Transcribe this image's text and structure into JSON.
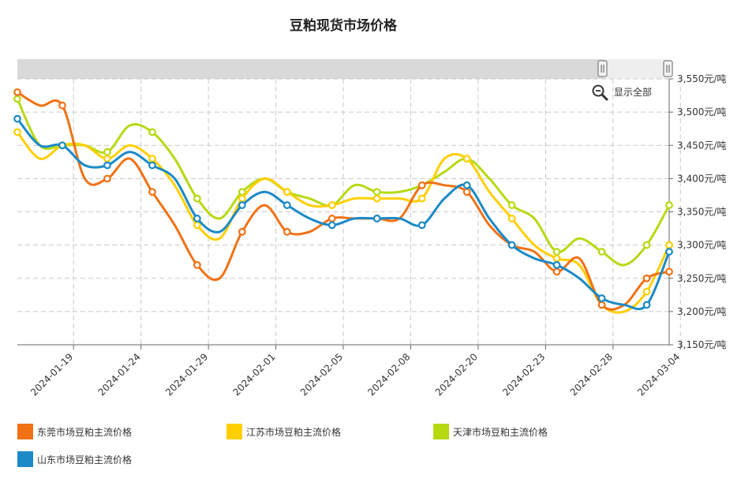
{
  "chart_data": {
    "type": "line",
    "title": "豆粕现货市场价格",
    "xlabel": "",
    "ylabel": "",
    "ylim": [
      3150,
      3550
    ],
    "y_ticks": [
      "3,550元/吨",
      "3,500元/吨",
      "3,450元/吨",
      "3,400元/吨",
      "3,350元/吨",
      "3,300元/吨",
      "3,250元/吨",
      "3,200元/吨",
      "3,150元/吨"
    ],
    "y_tick_values": [
      3550,
      3500,
      3450,
      3400,
      3350,
      3300,
      3250,
      3200,
      3150
    ],
    "x_ticks": [
      "2024-01-19",
      "2024-01-24",
      "2024-01-29",
      "2024-02-01",
      "2024-02-05",
      "2024-02-08",
      "2024-02-20",
      "2024-02-23",
      "2024-02-28",
      "2024-03-04"
    ],
    "x_tick_index": [
      2.5,
      5.5,
      8.5,
      11.5,
      14.5,
      17.5,
      20.5,
      23.5,
      26.5,
      29.5
    ],
    "grid": true,
    "legend_position": "bottom",
    "reset_zoom_label": "显示全部",
    "series": [
      {
        "name": "东莞市场豆粕主流价格",
        "color": "#f07215",
        "values": [
          3530,
          3510,
          3510,
          3400,
          3400,
          3430,
          3380,
          3330,
          3270,
          3250,
          3320,
          3360,
          3320,
          3320,
          3340,
          3340,
          3340,
          3340,
          3390,
          3390,
          3380,
          3330,
          3300,
          3290,
          3260,
          3280,
          3210,
          3210,
          3250,
          3260
        ]
      },
      {
        "name": "江苏市场豆粕主流价格",
        "color": "#ffcf00",
        "values": [
          3470,
          3430,
          3450,
          3450,
          3430,
          3450,
          3430,
          3390,
          3330,
          3310,
          3370,
          3400,
          3380,
          3360,
          3360,
          3370,
          3370,
          3370,
          3370,
          3430,
          3430,
          3380,
          3340,
          3300,
          3280,
          3270,
          3210,
          3200,
          3230,
          3300
        ]
      },
      {
        "name": "天津市场豆粕主流价格",
        "color": "#b5da12",
        "values": [
          3520,
          3450,
          3450,
          3450,
          3440,
          3480,
          3470,
          3430,
          3370,
          3340,
          3380,
          3400,
          3380,
          3370,
          3360,
          3390,
          3380,
          3380,
          3390,
          3410,
          3430,
          3400,
          3360,
          3340,
          3290,
          3310,
          3290,
          3270,
          3300,
          3360
        ]
      },
      {
        "name": "山东市场豆粕主流价格",
        "color": "#1b8ac7",
        "values": [
          3490,
          3450,
          3450,
          3420,
          3420,
          3440,
          3420,
          3400,
          3340,
          3320,
          3360,
          3380,
          3360,
          3340,
          3330,
          3340,
          3340,
          3340,
          3330,
          3370,
          3390,
          3340,
          3300,
          3280,
          3270,
          3250,
          3220,
          3210,
          3210,
          3290
        ]
      }
    ]
  }
}
